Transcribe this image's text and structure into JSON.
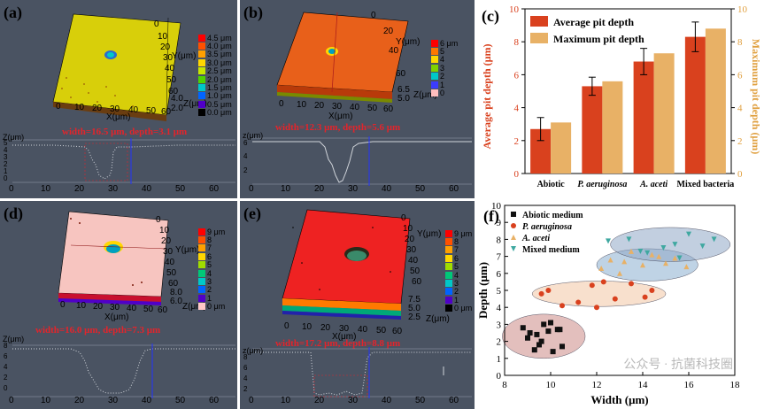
{
  "panels": {
    "a": {
      "label": "(a)",
      "legend": [
        "4.5 μm",
        "4.0 μm",
        "3.5 μm",
        "3.0 μm",
        "2.5 μm",
        "2.0 μm",
        "1.5 μm",
        "1.0 μm",
        "0.5 μm",
        "0.0 μm"
      ],
      "x_axis_label": "X(μm)",
      "y_axis_label": "Y(μm)",
      "z_axis_label": "Z(μm)",
      "x_ticks": [
        "0",
        "10",
        "20",
        "30",
        "40",
        "50",
        "60"
      ],
      "y_ticks": [
        "0",
        "10",
        "20",
        "30",
        "40",
        "50",
        "60"
      ],
      "z_ticks": [
        "4.0",
        "2.0"
      ],
      "annotation": "width=16.5 μm, depth=3.1 μm",
      "profile_z_label": "Z(μm)",
      "profile_y_ticks": [
        "5",
        "4",
        "3",
        "2",
        "1",
        "0"
      ],
      "profile_x_ticks": [
        "0",
        "10",
        "20",
        "30",
        "40",
        "50",
        "60"
      ],
      "colors": [
        "#ff0000",
        "#ff5000",
        "#ffa000",
        "#ffd700",
        "#c8e600",
        "#50d200",
        "#00c8c8",
        "#0064ff",
        "#5000c8",
        "#000000"
      ]
    },
    "b": {
      "label": "(b)",
      "legend": [
        "6 μm",
        "5",
        "4",
        "3",
        "2",
        "1",
        "0"
      ],
      "x_axis_label": "X(μm)",
      "y_axis_label": "Y(μm)",
      "z_axis_label": "Z(μm)",
      "x_ticks": [
        "0",
        "10",
        "20",
        "30",
        "40",
        "50",
        "60"
      ],
      "y_ticks": [
        "0",
        "20",
        "40",
        "60"
      ],
      "z_ticks": [
        "6.5",
        "5.0"
      ],
      "annotation": "width=12.3 μm, depth=5.6 μm",
      "profile_z_label": "z(μm)",
      "profile_y_ticks": [
        "6",
        "4",
        "2"
      ],
      "profile_x_ticks": [
        "0",
        "10",
        "20",
        "30",
        "40",
        "50",
        "60"
      ],
      "colors": [
        "#ff0000",
        "#ff7800",
        "#ffd700",
        "#7fd200",
        "#00c8c8",
        "#3c3cff",
        "#ffbebe"
      ]
    },
    "d": {
      "label": "(d)",
      "legend": [
        "9 μm",
        "8",
        "7",
        "6",
        "5",
        "4",
        "3",
        "2",
        "1",
        "0 μm"
      ],
      "x_axis_label": "X(μm)",
      "y_axis_label": "Y(μm)",
      "z_axis_label": "Z(μm)",
      "x_ticks": [
        "0",
        "10",
        "20",
        "30",
        "40",
        "50",
        "60"
      ],
      "y_ticks": [
        "0",
        "10",
        "20",
        "30",
        "40",
        "50",
        "60"
      ],
      "z_ticks": [
        "8.0",
        "6.0"
      ],
      "annotation": "width=16.0 μm, depth=7.3 μm",
      "profile_z_label": "Z(μm)",
      "profile_y_ticks": [
        "8",
        "6",
        "4",
        "2",
        "0"
      ],
      "profile_x_ticks": [
        "0",
        "10",
        "20",
        "30",
        "40",
        "50",
        "60"
      ],
      "colors": [
        "#ff0000",
        "#ff5000",
        "#ffa000",
        "#ffd700",
        "#a0dc00",
        "#00c878",
        "#00c8c8",
        "#0064ff",
        "#5000c8",
        "#ffc8c8"
      ]
    },
    "e": {
      "label": "(e)",
      "legend": [
        "9 μm",
        "8",
        "7",
        "6",
        "5",
        "4",
        "3",
        "2",
        "1",
        "0 μm"
      ],
      "x_axis_label": "X(μm)",
      "y_axis_label": "Y(μm)",
      "z_axis_label": "Z(μm)",
      "x_ticks": [
        "0",
        "10",
        "20",
        "30",
        "40",
        "50",
        "60"
      ],
      "y_ticks": [
        "0",
        "10",
        "20",
        "30",
        "40",
        "50",
        "60"
      ],
      "z_ticks": [
        "7.5",
        "5.0",
        "2.5"
      ],
      "annotation": "width=17.2 μm, depth=8.8 μm",
      "profile_z_label": "z(μm)",
      "profile_y_ticks": [
        "8",
        "6",
        "4",
        "2"
      ],
      "profile_x_ticks": [
        "0",
        "10",
        "20",
        "30",
        "40",
        "50",
        "60"
      ],
      "colors": [
        "#ff0000",
        "#ff5000",
        "#ffa000",
        "#ffd700",
        "#a0dc00",
        "#00c878",
        "#00c8c8",
        "#0064ff",
        "#5000c8",
        "#000000"
      ]
    }
  },
  "chart_data": [
    {
      "panel": "(c)",
      "type": "bar",
      "categories": [
        "Abiotic",
        "P. aeruginosa",
        "A. aceti",
        "Mixed bacteria"
      ],
      "series": [
        {
          "name": "Average pit depth",
          "values": [
            2.7,
            5.3,
            6.8,
            8.3
          ],
          "errors": [
            0.7,
            0.55,
            0.8,
            0.9
          ],
          "color": "#d9411e"
        },
        {
          "name": "Maximum pit depth",
          "values": [
            3.1,
            5.6,
            7.3,
            8.8
          ],
          "color": "#e8b166"
        }
      ],
      "ylabel": "Average pit depth (μm)",
      "y2label": "Maximum pit depth (μm)",
      "ylim": [
        0,
        10
      ],
      "y_ticks": [
        "0",
        "2",
        "4",
        "6",
        "8",
        "10"
      ],
      "legend_position": "top-left"
    },
    {
      "panel": "(f)",
      "type": "scatter",
      "xlabel": "Width (μm)",
      "ylabel": "Depth (μm)",
      "xlim": [
        8,
        18
      ],
      "ylim": [
        0,
        10
      ],
      "x_ticks": [
        "8",
        "10",
        "12",
        "14",
        "16",
        "18"
      ],
      "y_ticks": [
        "0",
        "1",
        "2",
        "3",
        "4",
        "5",
        "6",
        "7",
        "8",
        "9",
        "10"
      ],
      "legend_position": "top-left",
      "series": [
        {
          "name": "Abiotic medium",
          "marker": "square",
          "color": "#111111",
          "x": [
            8.8,
            9.1,
            9.4,
            9.5,
            9.7,
            9.9,
            10.0,
            10.1,
            10.3,
            10.4,
            9.3,
            9.6,
            10.5,
            9.0
          ],
          "y": [
            2.8,
            2.5,
            2.4,
            1.8,
            3.0,
            2.6,
            3.1,
            1.4,
            2.7,
            2.7,
            1.5,
            2.0,
            1.7,
            2.2
          ]
        },
        {
          "name": "P. aeruginosa",
          "marker": "circle",
          "color": "#d9411e",
          "x": [
            9.6,
            9.9,
            10.5,
            11.2,
            11.8,
            12.3,
            12.8,
            13.5,
            14.1,
            14.4,
            12.0
          ],
          "y": [
            4.8,
            5.0,
            4.1,
            4.3,
            5.3,
            5.5,
            4.5,
            5.4,
            4.6,
            5.0,
            4.0
          ]
        },
        {
          "name": "A. aceti",
          "marker": "triangle",
          "color": "#e8b166",
          "x": [
            12.2,
            12.6,
            13.0,
            13.5,
            14.0,
            14.4,
            15.0,
            15.4,
            15.9,
            13.2,
            14.7
          ],
          "y": [
            6.3,
            6.8,
            6.0,
            7.3,
            6.5,
            7.1,
            6.6,
            6.9,
            6.4,
            6.7,
            7.0
          ]
        },
        {
          "name": "Mixed medium",
          "marker": "triangle-down",
          "color": "#3fa8a0",
          "x": [
            12.5,
            13.4,
            14.2,
            14.9,
            15.4,
            16.0,
            16.6,
            17.1,
            15.6,
            13.9
          ],
          "y": [
            7.9,
            8.0,
            7.2,
            7.5,
            7.7,
            8.3,
            7.6,
            8.0,
            6.9,
            7.3
          ]
        }
      ],
      "ellipses": [
        {
          "cx": 9.7,
          "cy": 2.3,
          "rx": 1.8,
          "ry": 1.3,
          "color": "#cc8a86"
        },
        {
          "cx": 12.1,
          "cy": 4.8,
          "rx": 2.9,
          "ry": 0.75,
          "color": "#f3c7a4"
        },
        {
          "cx": 14.2,
          "cy": 6.5,
          "rx": 2.2,
          "ry": 0.95,
          "color": "#8aaecf"
        },
        {
          "cx": 15.2,
          "cy": 7.7,
          "rx": 2.6,
          "ry": 1.0,
          "color": "#8fa8c6"
        }
      ],
      "watermark": "公众号 · 抗菌科技圈"
    }
  ]
}
